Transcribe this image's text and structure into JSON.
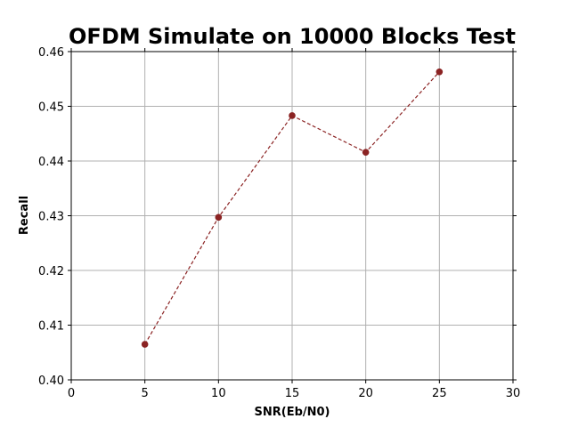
{
  "chart_data": {
    "type": "line",
    "title": "OFDM Simulate on 10000 Blocks Test",
    "xlabel": "SNR(Eb/N0)",
    "ylabel": "Recall",
    "xlim": [
      0,
      30
    ],
    "ylim": [
      0.4,
      0.46
    ],
    "xticks": [
      "0",
      "5",
      "10",
      "15",
      "20",
      "25",
      "30"
    ],
    "yticks": [
      "0.40",
      "0.41",
      "0.42",
      "0.43",
      "0.44",
      "0.45",
      "0.46"
    ],
    "grid": true,
    "line_style": "dashed",
    "marker": "circle",
    "series": [
      {
        "x": [
          5,
          10,
          15,
          20,
          25
        ],
        "y": [
          0.4065,
          0.4297,
          0.4483,
          0.4416,
          0.4563
        ],
        "color": "#8b2323"
      }
    ]
  }
}
